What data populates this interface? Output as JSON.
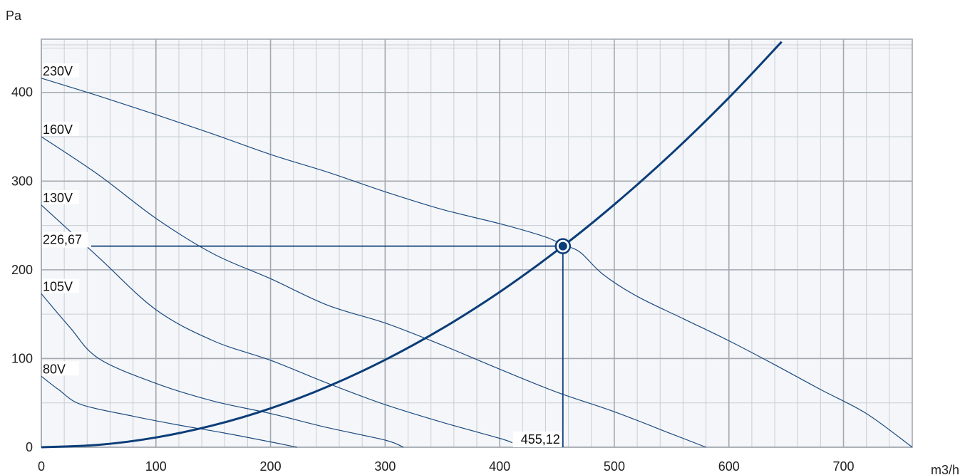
{
  "chart_data": {
    "type": "line",
    "title": "",
    "xlabel": "m3/h",
    "ylabel": "Pa",
    "xlim": [
      0,
      760
    ],
    "ylim": [
      0,
      460
    ],
    "x_ticks": [
      0,
      100,
      200,
      300,
      400,
      500,
      600,
      700
    ],
    "y_ticks": [
      0,
      100,
      200,
      300,
      400
    ],
    "grid": true,
    "colors": {
      "plot_background": "#f4f6f9",
      "major_grid": "#a3a9b1",
      "minor_grid": "#c9ced4",
      "fan_curves": "#1c4a7f",
      "system_curve": "#0b3d78"
    },
    "series": [
      {
        "name": "230V",
        "x": [
          0,
          50,
          100,
          150,
          200,
          250,
          300,
          350,
          400,
          440,
          455,
          470,
          490,
          520,
          560,
          600,
          640,
          680,
          720,
          760
        ],
        "y": [
          416,
          396,
          375,
          353,
          330,
          310,
          288,
          268,
          252,
          237,
          228,
          220,
          195,
          170,
          145,
          120,
          93,
          65,
          38,
          0
        ]
      },
      {
        "name": "160V",
        "x": [
          0,
          50,
          100,
          150,
          200,
          250,
          300,
          350,
          400,
          450,
          500,
          550,
          580
        ],
        "y": [
          350,
          307,
          258,
          218,
          190,
          160,
          140,
          115,
          88,
          62,
          40,
          15,
          0
        ]
      },
      {
        "name": "130V",
        "x": [
          0,
          50,
          100,
          150,
          200,
          250,
          300,
          350,
          400,
          411
        ],
        "y": [
          273,
          214,
          155,
          120,
          98,
          72,
          48,
          28,
          10,
          5
        ]
      },
      {
        "name": "105V",
        "x": [
          0,
          25,
          50,
          100,
          150,
          200,
          250,
          300,
          316
        ],
        "y": [
          173,
          135,
          100,
          72,
          52,
          38,
          22,
          8,
          0
        ]
      },
      {
        "name": "80V",
        "x": [
          0,
          15,
          35,
          80,
          120,
          160,
          200,
          223
        ],
        "y": [
          80,
          65,
          48,
          35,
          25,
          16,
          6,
          0
        ]
      }
    ],
    "system_curve": {
      "x": [
        0,
        50,
        100,
        150,
        200,
        250,
        300,
        350,
        400,
        455.12,
        500,
        550,
        600,
        646
      ],
      "y": [
        0,
        2.7,
        11,
        24.7,
        43.8,
        68.4,
        98.5,
        134,
        175,
        226.67,
        273.6,
        331,
        394,
        457
      ]
    },
    "operating_point": {
      "x": 455.12,
      "y": 226.67
    },
    "annotations": {
      "x_value": "455,12",
      "y_value": "226,67"
    }
  }
}
